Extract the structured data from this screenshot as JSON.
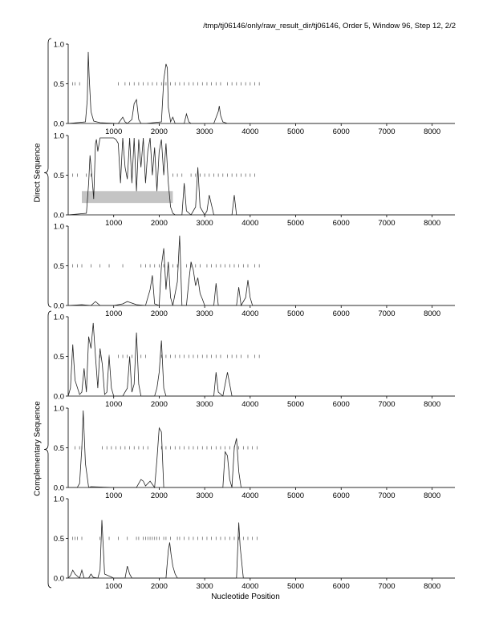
{
  "header": {
    "title": "/tmp/tj06146/only/raw_result_dir/tj06146, Order 5, Window 96, Step 12, 2/2"
  },
  "groups": {
    "direct_label": "Direct Sequence",
    "complementary_label": "Complementary Sequence"
  },
  "x_axis_label": "Nucleotide Position",
  "chart_data": [
    {
      "type": "line",
      "group": "direct",
      "frame": 1,
      "xlim": [
        0,
        8500
      ],
      "ylim": [
        0,
        1
      ],
      "x_ticks": [
        1000,
        2000,
        3000,
        4000,
        5000,
        6000,
        7000,
        8000
      ],
      "y_ticks": [
        0.0,
        0.5,
        1.0
      ],
      "x": [
        0,
        380,
        420,
        440,
        460,
        500,
        560,
        700,
        1100,
        1200,
        1250,
        1300,
        1400,
        1450,
        1500,
        1550,
        1600,
        1700,
        2050,
        2100,
        2150,
        2180,
        2200,
        2230,
        2250,
        2300,
        2350,
        2550,
        2600,
        2650,
        2700,
        3200,
        3300,
        3320,
        3350,
        3400,
        3500,
        8500
      ],
      "values": [
        0.0,
        0.02,
        0.3,
        0.9,
        0.6,
        0.15,
        0.03,
        0.01,
        0.0,
        0.08,
        0.02,
        0.0,
        0.05,
        0.25,
        0.3,
        0.05,
        0.0,
        0.0,
        0.02,
        0.55,
        0.75,
        0.7,
        0.2,
        0.1,
        0.02,
        0.08,
        0.0,
        0.0,
        0.12,
        0.02,
        0.0,
        0.0,
        0.15,
        0.22,
        0.1,
        0.02,
        0.0,
        0.0
      ],
      "dash_row": {
        "y": 0.5,
        "x": [
          100,
          150,
          250,
          1100,
          1250,
          1350,
          1450,
          1550,
          1650,
          1750,
          1850,
          1950,
          2050,
          2100,
          2150,
          2250,
          2350,
          2450,
          2550,
          2650,
          2750,
          2850,
          2950,
          3050,
          3150,
          3250,
          3350,
          3500,
          3600,
          3700,
          3800,
          3900,
          4000,
          4100,
          4200
        ]
      }
    },
    {
      "type": "line",
      "group": "direct",
      "frame": 2,
      "xlim": [
        0,
        8500
      ],
      "ylim": [
        0,
        1
      ],
      "x_ticks": [
        1000,
        2000,
        3000,
        4000,
        5000,
        6000,
        7000,
        8000
      ],
      "y_ticks": [
        0.0,
        0.5,
        1.0
      ],
      "x": [
        0,
        400,
        450,
        480,
        520,
        560,
        600,
        620,
        650,
        700,
        750,
        800,
        900,
        1000,
        1050,
        1100,
        1150,
        1200,
        1250,
        1300,
        1350,
        1400,
        1450,
        1500,
        1550,
        1600,
        1650,
        1700,
        1750,
        1800,
        1850,
        1900,
        1950,
        2000,
        2050,
        2100,
        2150,
        2200,
        2250,
        2300,
        2350,
        2500,
        2550,
        2600,
        2700,
        2800,
        2850,
        2900,
        3000,
        3050,
        3100,
        3200,
        3600,
        3650,
        3700,
        8500
      ],
      "values": [
        0.0,
        0.02,
        0.4,
        0.75,
        0.5,
        0.2,
        0.9,
        0.95,
        0.8,
        0.97,
        0.97,
        0.97,
        0.97,
        0.97,
        0.95,
        0.9,
        0.4,
        0.97,
        0.6,
        0.45,
        0.97,
        0.4,
        0.97,
        0.3,
        0.95,
        0.6,
        0.97,
        0.4,
        0.8,
        0.97,
        0.5,
        0.85,
        0.3,
        0.8,
        0.95,
        0.5,
        0.9,
        0.4,
        0.1,
        0.02,
        0.0,
        0.0,
        0.4,
        0.05,
        0.0,
        0.1,
        0.6,
        0.1,
        0.0,
        0.05,
        0.25,
        0.0,
        0.0,
        0.25,
        0.0,
        0.0
      ],
      "band": {
        "x": [
          300,
          2300
        ],
        "y": [
          0.15,
          0.3
        ]
      },
      "dash_row": {
        "y": 0.5,
        "x": [
          100,
          200,
          400,
          500,
          2300,
          2400,
          2500,
          2700,
          2800,
          2900,
          3000,
          3100,
          3200,
          3300,
          3400,
          3500,
          3600,
          3700,
          3800,
          3900,
          4000,
          4100
        ]
      }
    },
    {
      "type": "line",
      "group": "direct",
      "frame": 3,
      "xlim": [
        0,
        8500
      ],
      "ylim": [
        0,
        1
      ],
      "x_ticks": [
        1000,
        2000,
        3000,
        4000,
        5000,
        6000,
        7000,
        8000
      ],
      "y_ticks": [
        0.0,
        0.5,
        1.0
      ],
      "x": [
        0,
        300,
        500,
        600,
        700,
        1000,
        1200,
        1300,
        1500,
        1700,
        1800,
        1850,
        1900,
        2000,
        2050,
        2100,
        2150,
        2200,
        2250,
        2300,
        2400,
        2450,
        2500,
        2600,
        2650,
        2700,
        2750,
        2800,
        2850,
        2900,
        2950,
        3000,
        3200,
        3250,
        3300,
        3500,
        3600,
        3700,
        3750,
        3800,
        3900,
        3950,
        4000,
        4050,
        8500
      ],
      "values": [
        0.0,
        0.01,
        0.0,
        0.05,
        0.0,
        0.0,
        0.02,
        0.05,
        0.01,
        0.0,
        0.2,
        0.38,
        0.02,
        0.0,
        0.5,
        0.72,
        0.2,
        0.55,
        0.1,
        0.0,
        0.3,
        0.88,
        0.0,
        0.0,
        0.3,
        0.55,
        0.45,
        0.25,
        0.35,
        0.15,
        0.08,
        0.0,
        0.0,
        0.28,
        0.0,
        0.0,
        0.0,
        0.0,
        0.23,
        0.0,
        0.1,
        0.32,
        0.1,
        0.0,
        0.0
      ],
      "dash_row": {
        "y": 0.5,
        "x": [
          100,
          200,
          300,
          500,
          700,
          900,
          1200,
          1600,
          1700,
          1800,
          1900,
          2000,
          2100,
          2200,
          2300,
          2400,
          2600,
          2700,
          2800,
          2900,
          3050,
          3150,
          3250,
          3350,
          3450,
          3550,
          3650,
          3750,
          3850,
          3950,
          4100,
          4200
        ]
      }
    },
    {
      "type": "line",
      "group": "complementary",
      "frame": 1,
      "xlim": [
        0,
        8500
      ],
      "ylim": [
        0,
        1
      ],
      "x_ticks": [
        1000,
        2000,
        3000,
        4000,
        5000,
        6000,
        7000,
        8000
      ],
      "y_ticks": [
        0.0,
        0.5,
        1.0
      ],
      "x": [
        0,
        50,
        100,
        150,
        250,
        300,
        350,
        400,
        450,
        500,
        550,
        600,
        650,
        700,
        750,
        800,
        850,
        900,
        950,
        1000,
        1200,
        1300,
        1350,
        1400,
        1450,
        1500,
        1550,
        1600,
        1900,
        1950,
        2000,
        2050,
        2100,
        2150,
        2200,
        3200,
        3250,
        3300,
        3400,
        3500,
        3550,
        3600,
        8500
      ],
      "values": [
        0.0,
        0.1,
        0.65,
        0.2,
        0.02,
        0.05,
        0.35,
        0.05,
        0.75,
        0.6,
        0.92,
        0.5,
        0.1,
        0.6,
        0.4,
        0.02,
        0.05,
        0.5,
        0.1,
        0.0,
        0.0,
        0.1,
        0.5,
        0.05,
        0.15,
        0.8,
        0.15,
        0.0,
        0.0,
        0.1,
        0.3,
        0.7,
        0.1,
        0.0,
        0.0,
        0.0,
        0.3,
        0.05,
        0.0,
        0.3,
        0.15,
        0.0,
        0.0
      ],
      "dash_row": {
        "y": 0.5,
        "x": [
          700,
          900,
          1100,
          1200,
          1300,
          1400,
          1600,
          1700,
          2050,
          2150,
          2250,
          2350,
          2450,
          2550,
          2650,
          2750,
          2850,
          2950,
          3050,
          3150,
          3250,
          3350,
          3500,
          3600,
          3700,
          3800,
          3950,
          4100,
          4200
        ]
      }
    },
    {
      "type": "line",
      "group": "complementary",
      "frame": 2,
      "xlim": [
        0,
        8500
      ],
      "ylim": [
        0,
        1
      ],
      "x_ticks": [
        1000,
        2000,
        3000,
        4000,
        5000,
        6000,
        7000,
        8000
      ],
      "y_ticks": [
        0.0,
        0.5,
        1.0
      ],
      "x": [
        0,
        200,
        250,
        300,
        330,
        380,
        450,
        500,
        1000,
        1500,
        1600,
        1650,
        1700,
        1800,
        1900,
        1950,
        2000,
        2050,
        2100,
        2200,
        3400,
        3450,
        3500,
        3550,
        3600,
        3650,
        3700,
        3750,
        3800,
        8500
      ],
      "values": [
        0.0,
        0.0,
        0.05,
        0.5,
        0.97,
        0.3,
        0.0,
        0.01,
        0.0,
        0.0,
        0.1,
        0.08,
        0.02,
        0.08,
        0.0,
        0.35,
        0.75,
        0.7,
        0.0,
        0.0,
        0.0,
        0.45,
        0.4,
        0.1,
        0.0,
        0.5,
        0.62,
        0.2,
        0.0,
        0.0
      ],
      "dash_row": {
        "y": 0.5,
        "x": [
          150,
          250,
          300,
          750,
          850,
          950,
          1050,
          1150,
          1250,
          1350,
          1450,
          1550,
          1650,
          1750,
          2050,
          2150,
          2250,
          2350,
          2450,
          2550,
          2650,
          2750,
          2850,
          2950,
          3050,
          3150,
          3250,
          3350,
          3450,
          3550,
          3650,
          3750,
          3850,
          3950,
          4050,
          4150
        ]
      }
    },
    {
      "type": "line",
      "group": "complementary",
      "frame": 3,
      "xlim": [
        0,
        8500
      ],
      "ylim": [
        0,
        1
      ],
      "x_ticks": [
        1000,
        2000,
        3000,
        4000,
        5000,
        6000,
        7000,
        8000
      ],
      "y_ticks": [
        0.0,
        0.5,
        1.0
      ],
      "x": [
        0,
        50,
        100,
        150,
        250,
        300,
        350,
        450,
        500,
        550,
        650,
        700,
        740,
        800,
        1000,
        1250,
        1300,
        1350,
        1400,
        2150,
        2200,
        2230,
        2260,
        2300,
        2350,
        2400,
        3700,
        3750,
        3780,
        3850,
        8500
      ],
      "values": [
        0.0,
        0.03,
        0.1,
        0.05,
        0.0,
        0.1,
        0.0,
        0.0,
        0.05,
        0.01,
        0.0,
        0.1,
        0.73,
        0.05,
        0.0,
        0.0,
        0.15,
        0.05,
        0.0,
        0.0,
        0.35,
        0.45,
        0.3,
        0.15,
        0.05,
        0.0,
        0.0,
        0.7,
        0.4,
        0.0,
        0.0
      ],
      "dash_row": {
        "y": 0.5,
        "x": [
          100,
          150,
          200,
          300,
          700,
          900,
          1100,
          1300,
          1500,
          1550,
          1650,
          1700,
          1750,
          1800,
          1850,
          1900,
          1950,
          2000,
          2100,
          2150,
          2250,
          2400,
          2450,
          2550,
          2650,
          2750,
          2850,
          2950,
          3050,
          3150,
          3250,
          3350,
          3450,
          3550,
          3650,
          3750,
          3850,
          3950,
          4050,
          4150
        ]
      }
    }
  ]
}
